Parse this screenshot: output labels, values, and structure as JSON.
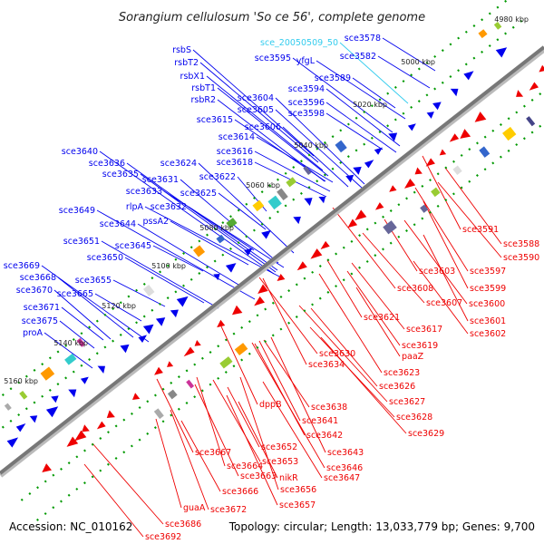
{
  "title": "Sorangium cellulosum 'So ce 56', complete genome",
  "footer": {
    "accession": "Accession: NC_010162",
    "topology": "Topology: circular; Length: 13,033,779 bp; Genes: 9,700"
  },
  "colors": {
    "forward": "#0000ee",
    "reverse": "#ee0000",
    "special": "#33ccee",
    "backbone": "#777777",
    "tick": "#009900"
  },
  "scale_marks": [
    "4980 kbp",
    "5000 kbp",
    "5020 kbp",
    "5040 kbp",
    "5060 kbp",
    "5080 kbp",
    "5100 kbp",
    "5120 kbp",
    "5140 kbp",
    "5160 kbp"
  ],
  "labels_forward": [
    "rsbS",
    "rsbT2",
    "rsbX1",
    "rsbT1",
    "rsbR2",
    "sce3615",
    "sce3614",
    "sce3616",
    "sce3618",
    "sce3604",
    "sce3605",
    "sce3606",
    "sce3598",
    "sce3594",
    "sce3596",
    "sce3595",
    "yfgL",
    "sce3589",
    "sce3582",
    "sce3578",
    "sce3640",
    "sce3636",
    "sce3635",
    "sce3631",
    "sce3624",
    "sce3622",
    "sce3633",
    "sce3625",
    "rlpA",
    "sce3632",
    "sce3649",
    "pssA2",
    "sce3644",
    "sce3651",
    "sce3645",
    "sce3650",
    "sce3669",
    "sce3668",
    "sce3655",
    "sce3670",
    "sce3665",
    "sce3671",
    "sce3675",
    "proA"
  ],
  "labels_special": [
    "sce_20050509_50"
  ],
  "labels_reverse": [
    "sce3591",
    "sce3588",
    "sce3590",
    "sce3597",
    "sce3603",
    "sce3599",
    "sce3608",
    "sce3600",
    "sce3607",
    "sce3601",
    "sce3621",
    "sce3602",
    "sce3617",
    "sce3630",
    "sce3619",
    "sce3634",
    "paaZ",
    "sce3623",
    "sce3626",
    "sce3627",
    "sce3628",
    "sce3629",
    "dppB",
    "sce3638",
    "sce3641",
    "sce3642",
    "sce3643",
    "sce3646",
    "sce3647",
    "sce3652",
    "sce3653",
    "sce3667",
    "sce3664",
    "sce3663",
    "sce3666",
    "nikR",
    "sce3656",
    "sce3657",
    "sce3672",
    "guaA",
    "sce3686",
    "sce3692"
  ]
}
